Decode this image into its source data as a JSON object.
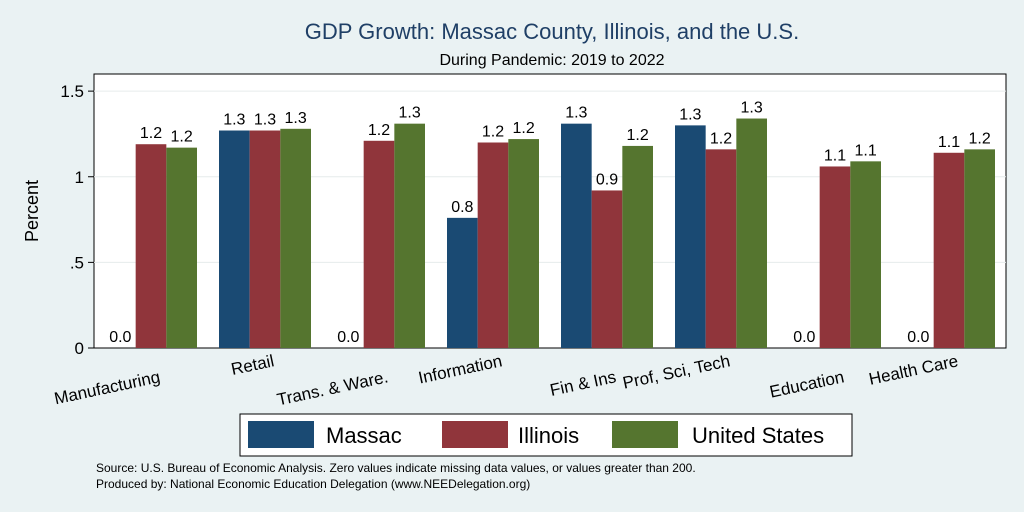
{
  "chart_data": {
    "type": "bar",
    "title": "GDP Growth: Massac County, Illinois, and the U.S.",
    "subtitle": "During Pandemic: 2019 to 2022",
    "ylabel": "Percent",
    "ylim": [
      0,
      1.6
    ],
    "yticks": [
      {
        "value": 0,
        "label": "0"
      },
      {
        "value": 0.5,
        "label": ".5"
      },
      {
        "value": 1,
        "label": "1"
      },
      {
        "value": 1.5,
        "label": "1.5"
      }
    ],
    "grid": true,
    "legend_position": "bottom",
    "categories": [
      "Manufacturing",
      "Retail",
      "Trans. & Ware.",
      "Information",
      "Fin & Ins",
      "Prof, Sci, Tech",
      "Education",
      "Health Care"
    ],
    "series": [
      {
        "name": "Massac",
        "color": "#1a4a73",
        "values": [
          0,
          1.27,
          0,
          0.76,
          1.31,
          1.3,
          0,
          0
        ],
        "labels": [
          "0.0",
          "1.3",
          "0.0",
          "0.8",
          "1.3",
          "1.3",
          "0.0",
          "0.0"
        ]
      },
      {
        "name": "Illinois",
        "color": "#90353b",
        "values": [
          1.19,
          1.27,
          1.21,
          1.2,
          0.92,
          1.16,
          1.06,
          1.14
        ],
        "labels": [
          "1.2",
          "1.3",
          "1.2",
          "1.2",
          "0.9",
          "1.2",
          "1.1",
          "1.1"
        ]
      },
      {
        "name": "United States",
        "color": "#55752f",
        "values": [
          1.17,
          1.28,
          1.31,
          1.22,
          1.18,
          1.34,
          1.09,
          1.16
        ],
        "labels": [
          "1.2",
          "1.3",
          "1.3",
          "1.2",
          "1.2",
          "1.3",
          "1.1",
          "1.2"
        ]
      }
    ]
  },
  "notes": {
    "source": "Source: U.S. Bureau of Economic Analysis. Zero values indicate missing data values, or values greater than 200.",
    "produced_by": "Produced by: National Economic Education Delegation (www.NEEDelegation.org)"
  }
}
